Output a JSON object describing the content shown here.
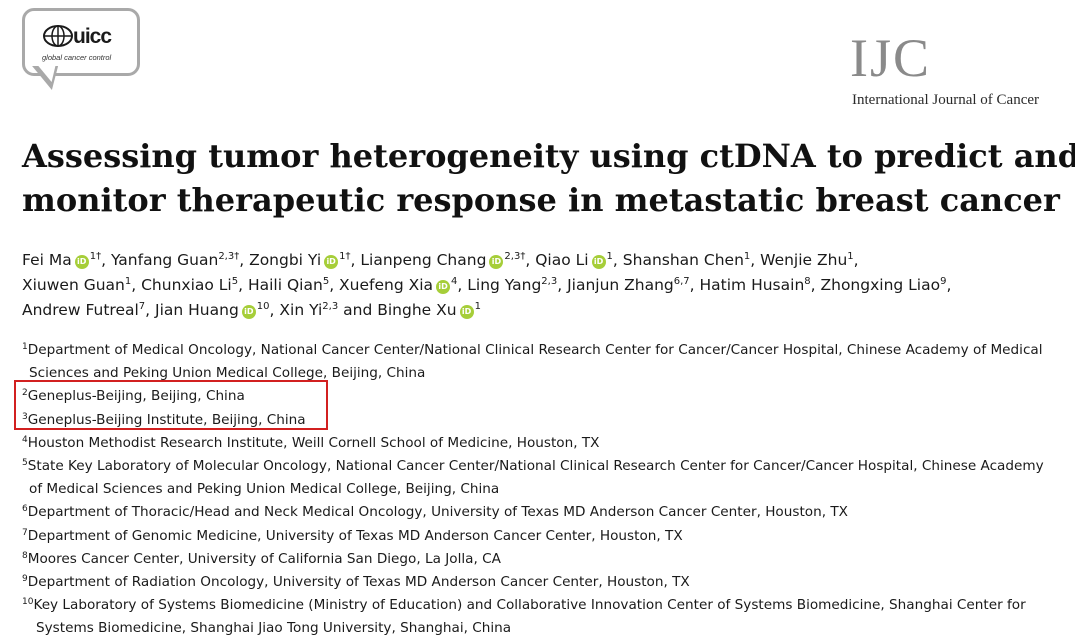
{
  "header": {
    "logo_name": "uicc",
    "logo_tagline": "global cancer control",
    "journal_abbr": "IJC",
    "journal_name": "International Journal of Cancer"
  },
  "title_lines": [
    "Assessing tumor heterogeneity using ctDNA to predict and",
    "monitor therapeutic response in metastatic breast cancer"
  ],
  "authors": [
    [
      {
        "name": "Fei Ma",
        "orcid": true,
        "sup": "1†"
      },
      {
        "name": "Yanfang Guan",
        "orcid": false,
        "sup": "2,3†"
      },
      {
        "name": "Zongbi Yi",
        "orcid": true,
        "sup": "1†"
      },
      {
        "name": "Lianpeng Chang",
        "orcid": true,
        "sup": "2,3†"
      },
      {
        "name": "Qiao Li",
        "orcid": true,
        "sup": "1"
      },
      {
        "name": "Shanshan Chen",
        "orcid": false,
        "sup": "1"
      },
      {
        "name": "Wenjie Zhu",
        "orcid": false,
        "sup": "1"
      }
    ],
    [
      {
        "name": "Xiuwen Guan",
        "orcid": false,
        "sup": "1"
      },
      {
        "name": "Chunxiao Li",
        "orcid": false,
        "sup": "5"
      },
      {
        "name": "Haili Qian",
        "orcid": false,
        "sup": "5"
      },
      {
        "name": "Xuefeng Xia",
        "orcid": true,
        "sup": "4"
      },
      {
        "name": "Ling Yang",
        "orcid": false,
        "sup": "2,3"
      },
      {
        "name": "Jianjun Zhang",
        "orcid": false,
        "sup": "6,7"
      },
      {
        "name": "Hatim Husain",
        "orcid": false,
        "sup": "8"
      },
      {
        "name": "Zhongxing Liao",
        "orcid": false,
        "sup": "9"
      }
    ],
    [
      {
        "name": "Andrew Futreal",
        "orcid": false,
        "sup": "7"
      },
      {
        "name": "Jian Huang",
        "orcid": true,
        "sup": "10"
      },
      {
        "name": "Xin Yi",
        "orcid": false,
        "sup": "2,3"
      },
      {
        "name": "Binghe Xu",
        "orcid": true,
        "sup": "1",
        "joiner": " and "
      }
    ]
  ],
  "orcid_label": "iD",
  "affiliations": [
    {
      "num": "1",
      "lines": [
        "Department of Medical Oncology, National Cancer Center/National Clinical Research Center for Cancer/Cancer Hospital, Chinese Academy of Medical",
        "Sciences and Peking Union Medical College, Beijing, China"
      ]
    },
    {
      "num": "2",
      "lines": [
        "Geneplus-Beijing, Beijing, China"
      ]
    },
    {
      "num": "3",
      "lines": [
        "Geneplus-Beijing Institute, Beijing, China"
      ]
    },
    {
      "num": "4",
      "lines": [
        "Houston Methodist Research Institute, Weill Cornell School of Medicine, Houston, TX"
      ]
    },
    {
      "num": "5",
      "lines": [
        "State Key Laboratory of Molecular Oncology, National Cancer Center/National Clinical Research Center for Cancer/Cancer Hospital, Chinese Academy",
        "of Medical Sciences and Peking Union Medical College, Beijing, China"
      ]
    },
    {
      "num": "6",
      "lines": [
        "Department of Thoracic/Head and Neck Medical Oncology, University of Texas MD Anderson Cancer Center, Houston, TX"
      ]
    },
    {
      "num": "7",
      "lines": [
        "Department of Genomic Medicine, University of Texas MD Anderson Cancer Center, Houston, TX"
      ]
    },
    {
      "num": "8",
      "lines": [
        "Moores Cancer Center, University of California San Diego, La Jolla, CA"
      ]
    },
    {
      "num": "9",
      "lines": [
        "Department of Radiation Oncology, University of Texas MD Anderson Cancer Center, Houston, TX"
      ]
    },
    {
      "num": "10",
      "lines": [
        "Key Laboratory of Systems Biomedicine (Ministry of Education) and Collaborative Innovation Center of Systems Biomedicine, Shanghai Center for",
        "Systems Biomedicine, Shanghai Jiao Tong University, Shanghai, China"
      ]
    }
  ],
  "colors": {
    "orcid_green": "#a6ce39",
    "highlight_red": "#d22020",
    "journal_gray": "#8a8a8a"
  }
}
